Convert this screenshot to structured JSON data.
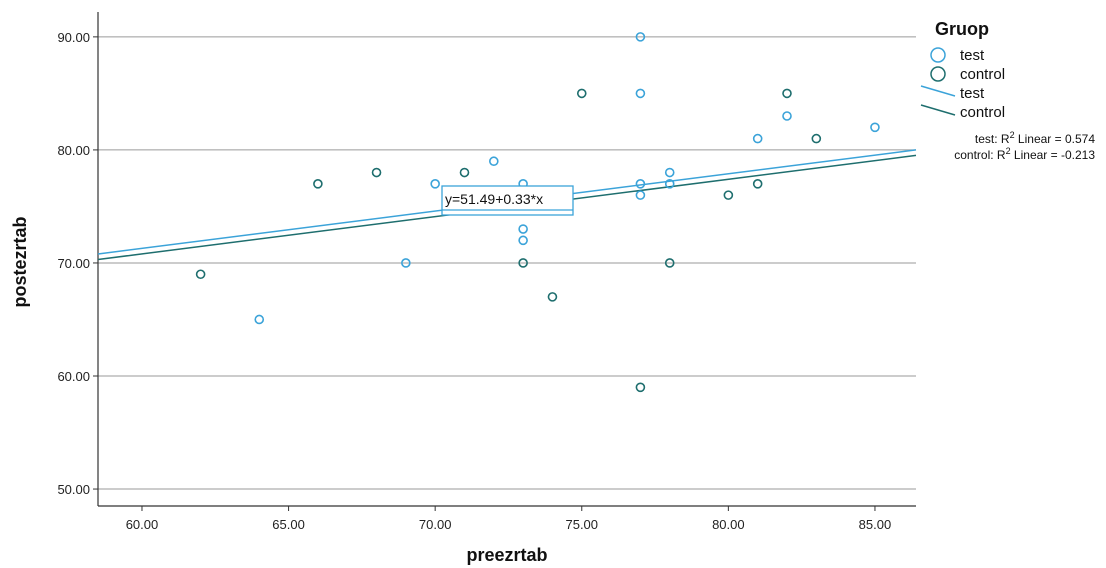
{
  "chart_data": {
    "type": "scatter",
    "xlabel": "preezrtab",
    "ylabel": "postezrtab",
    "xlim": [
      58.5,
      86.4
    ],
    "ylim": [
      48.5,
      92.2
    ],
    "x_ticks": [
      "60.00",
      "65.00",
      "70.00",
      "75.00",
      "80.00",
      "85.00"
    ],
    "x_tick_values": [
      60,
      65,
      70,
      75,
      80,
      85
    ],
    "y_ticks": [
      "50.00",
      "60.00",
      "70.00",
      "80.00",
      "90.00"
    ],
    "y_tick_values": [
      50,
      60,
      70,
      80,
      90
    ],
    "grid": "horizontal",
    "legend_title": "Gruop",
    "legend_position": "right",
    "series": [
      {
        "name": "test",
        "color": "#3BA3D9",
        "points": [
          [
            64,
            65
          ],
          [
            69,
            70
          ],
          [
            70,
            77
          ],
          [
            72,
            79
          ],
          [
            73,
            77
          ],
          [
            73,
            73
          ],
          [
            73,
            72
          ],
          [
            77,
            90
          ],
          [
            77,
            85
          ],
          [
            77,
            77
          ],
          [
            77,
            76
          ],
          [
            78,
            78
          ],
          [
            78,
            77
          ],
          [
            81,
            81
          ],
          [
            82,
            83
          ],
          [
            85,
            82
          ]
        ],
        "fit_line": {
          "intercept": 51.49,
          "slope": 0.33
        }
      },
      {
        "name": "control",
        "color": "#1E6E6E",
        "points": [
          [
            62,
            69
          ],
          [
            66,
            77
          ],
          [
            68,
            78
          ],
          [
            71,
            78
          ],
          [
            73,
            70
          ],
          [
            74,
            67
          ],
          [
            75,
            85
          ],
          [
            77,
            59
          ],
          [
            78,
            70
          ],
          [
            80,
            76
          ],
          [
            81,
            77
          ],
          [
            82,
            85
          ],
          [
            83,
            81
          ]
        ],
        "fit_line": {
          "intercept": 51.0,
          "slope": 0.33
        }
      }
    ],
    "fit_legend": [
      "test",
      "control"
    ],
    "r2_labels": [
      {
        "prefix": "test: R",
        "sup": "2",
        "suffix": " Linear = 0.574"
      },
      {
        "prefix": "control: R",
        "sup": "2",
        "suffix": " Linear = -0.213"
      }
    ],
    "equation_label": "y=51.49+0.33*x"
  }
}
